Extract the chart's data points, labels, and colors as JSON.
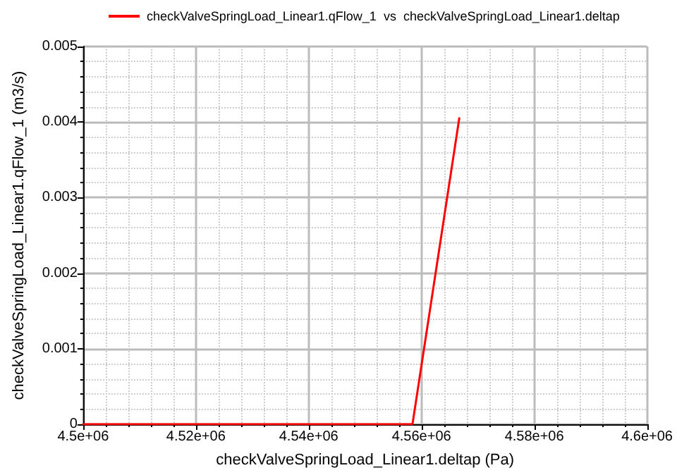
{
  "chart_data": {
    "type": "line",
    "xlabel": "checkValveSpringLoad_Linear1.deltap (Pa)",
    "ylabel": "checkValveSpringLoad_Linear1.qFlow_1 (m3/s)",
    "series": [
      {
        "name": "checkValveSpringLoad_Linear1.qFlow_1  vs  checkValveSpringLoad_Linear1.deltap",
        "color": "#ff0000",
        "x": [
          4500000,
          4558400,
          4566700
        ],
        "values": [
          0,
          0,
          0.00405
        ]
      }
    ],
    "xlim": [
      4500000,
      4600000
    ],
    "xticks": [
      {
        "value": 4500000,
        "label": "4.5e+06"
      },
      {
        "value": 4520000,
        "label": "4.52e+06"
      },
      {
        "value": 4540000,
        "label": "4.54e+06"
      },
      {
        "value": 4560000,
        "label": "4.56e+06"
      },
      {
        "value": 4580000,
        "label": "4.58e+06"
      },
      {
        "value": 4600000,
        "label": "4.6e+06"
      }
    ],
    "ylim": [
      0,
      0.005
    ],
    "yticks": [
      0,
      0.001,
      0.002,
      0.003,
      0.004,
      0.005
    ],
    "grid": true,
    "legend": "top left",
    "marker": "none",
    "line_style": "solid"
  }
}
